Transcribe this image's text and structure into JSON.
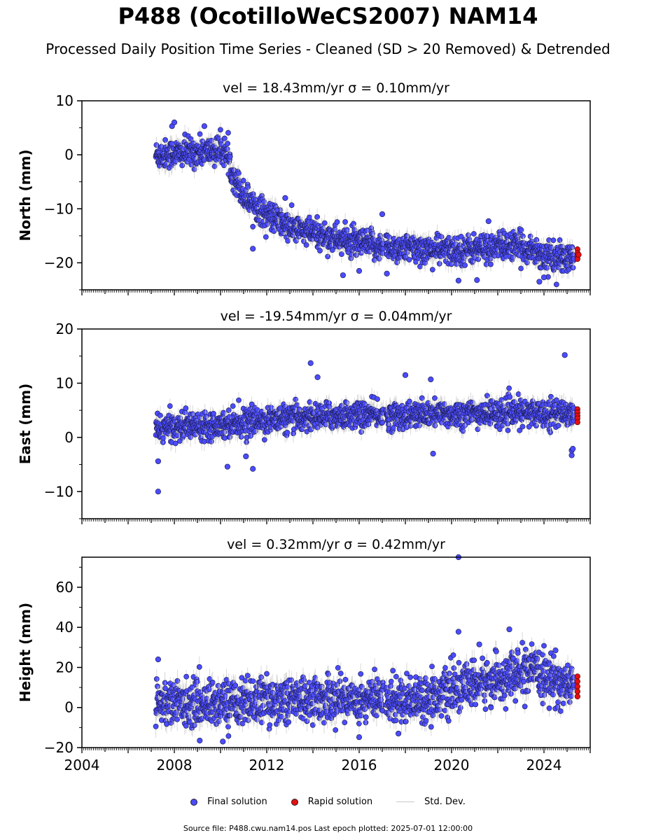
{
  "title": "P488 (OcotilloWeCS2007) NAM14",
  "subtitle": "Processed Daily Position Time Series - Cleaned (SD > 20 Removed) & Detrended",
  "footer": "Source file: P488.cwu.nam14.pos  Last epoch plotted: 2025-07-01 12:00:00",
  "legend": {
    "final": "Final solution",
    "rapid": "Rapid solution",
    "std": "Std. Dev."
  },
  "colors": {
    "final": "#4b4bff",
    "rapid": "#e41010",
    "std": "#c8c8c8",
    "edge": "#1a1a40"
  },
  "chart_data": [
    {
      "type": "scatter",
      "panel": "north",
      "title": "vel = 18.43mm/yr   σ = 0.10mm/yr",
      "ylabel": "North (mm)",
      "xlim": [
        2004,
        2026
      ],
      "ylim": [
        -25,
        10
      ],
      "yticks": [
        10,
        0,
        -10,
        -20
      ],
      "trend": {
        "x": [
          2007.2,
          2009.0,
          2010.2,
          2010.5,
          2011.0,
          2012.0,
          2013.0,
          2014.0,
          2015.0,
          2016.0,
          2017.1,
          2018.0,
          2020.0,
          2022.5,
          2023.5,
          2024.2,
          2025.0
        ],
        "y": [
          0.0,
          0.5,
          0.8,
          -3.0,
          -7.5,
          -11.0,
          -13.5,
          -14.5,
          -15.5,
          -16.5,
          -17.0,
          -17.3,
          -17.8,
          -16.8,
          -17.5,
          -19.0,
          -19.3
        ]
      },
      "scatter": 1.3,
      "outliers": [
        {
          "x": 2007.9,
          "y": 5.3
        },
        {
          "x": 2008.0,
          "y": 6.0
        },
        {
          "x": 2009.3,
          "y": 5.3
        },
        {
          "x": 2011.4,
          "y": -17.4
        },
        {
          "x": 2012.8,
          "y": -8.0
        },
        {
          "x": 2015.3,
          "y": -22.3
        },
        {
          "x": 2016.0,
          "y": -21.5
        },
        {
          "x": 2017.0,
          "y": -11.0
        },
        {
          "x": 2017.2,
          "y": -22.0
        },
        {
          "x": 2020.3,
          "y": -23.3
        },
        {
          "x": 2021.1,
          "y": -23.2
        },
        {
          "x": 2021.6,
          "y": -12.3
        },
        {
          "x": 2023.8,
          "y": -23.5
        },
        {
          "x": 2024.0,
          "y": -22.7
        }
      ],
      "rapid": [
        {
          "x": 2025.45,
          "y": -17.5
        },
        {
          "x": 2025.45,
          "y": -18.2
        },
        {
          "x": 2025.45,
          "y": -18.8
        },
        {
          "x": 2025.45,
          "y": -19.3
        },
        {
          "x": 2025.5,
          "y": -18.5
        }
      ]
    },
    {
      "type": "scatter",
      "panel": "east",
      "title": "vel = -19.54mm/yr   σ = 0.04mm/yr",
      "ylabel": "East (mm)",
      "xlim": [
        2004,
        2026
      ],
      "ylim": [
        -15,
        20
      ],
      "yticks": [
        20,
        10,
        0,
        -10
      ],
      "trend": {
        "x": [
          2007.2,
          2008.0,
          2010.0,
          2012.0,
          2014.0,
          2016.0,
          2017.1,
          2019.0,
          2021.0,
          2023.0,
          2025.0
        ],
        "y": [
          1.5,
          2.0,
          2.5,
          3.2,
          3.8,
          4.2,
          4.0,
          4.2,
          4.4,
          4.5,
          4.5
        ]
      },
      "scatter": 1.2,
      "outliers": [
        {
          "x": 2007.3,
          "y": -10.0
        },
        {
          "x": 2007.3,
          "y": -4.4
        },
        {
          "x": 2013.9,
          "y": 13.7
        },
        {
          "x": 2014.2,
          "y": 11.1
        },
        {
          "x": 2018.0,
          "y": 11.5
        },
        {
          "x": 2019.1,
          "y": 10.7
        },
        {
          "x": 2011.4,
          "y": -5.8
        },
        {
          "x": 2011.1,
          "y": -3.5
        },
        {
          "x": 2010.3,
          "y": -5.4
        },
        {
          "x": 2019.2,
          "y": -3.0
        },
        {
          "x": 2024.9,
          "y": 15.2
        },
        {
          "x": 2025.2,
          "y": -3.3
        },
        {
          "x": 2025.2,
          "y": -2.4
        },
        {
          "x": 2025.25,
          "y": -2.1
        }
      ],
      "rapid": [
        {
          "x": 2025.45,
          "y": 5.2
        },
        {
          "x": 2025.45,
          "y": 4.6
        },
        {
          "x": 2025.45,
          "y": 4.0
        },
        {
          "x": 2025.45,
          "y": 3.5
        },
        {
          "x": 2025.45,
          "y": 2.8
        }
      ]
    },
    {
      "type": "scatter",
      "panel": "height",
      "title": "vel = 0.32mm/yr   σ = 0.42mm/yr",
      "ylabel": "Height (mm)",
      "xlim": [
        2004,
        2026
      ],
      "ylim": [
        -20,
        75
      ],
      "yticks": [
        60,
        40,
        20,
        0,
        -20
      ],
      "xticks": [
        2004,
        2008,
        2012,
        2016,
        2020,
        2024
      ],
      "trend": {
        "x": [
          2007.2,
          2009.0,
          2011.0,
          2013.0,
          2015.0,
          2017.1,
          2019.0,
          2020.5,
          2022.0,
          2023.5,
          2024.5,
          2025.2
        ],
        "y": [
          3.0,
          2.0,
          3.0,
          4.0,
          4.5,
          4.0,
          5.0,
          10.0,
          14.0,
          18.0,
          13.0,
          11.0
        ]
      },
      "scatter": 5.5,
      "outliers": [
        {
          "x": 2007.3,
          "y": 24.0
        },
        {
          "x": 2020.3,
          "y": 75.0
        },
        {
          "x": 2020.3,
          "y": 37.8
        },
        {
          "x": 2022.5,
          "y": 39.0
        },
        {
          "x": 2021.2,
          "y": 31.5
        },
        {
          "x": 2017.7,
          "y": -13.0
        },
        {
          "x": 2010.1,
          "y": -17.0
        },
        {
          "x": 2009.1,
          "y": -16.5
        },
        {
          "x": 2016.0,
          "y": -14.8
        },
        {
          "x": 2024.5,
          "y": 28.5
        }
      ],
      "rapid": [
        {
          "x": 2025.45,
          "y": 15.5
        },
        {
          "x": 2025.45,
          "y": 13.0
        },
        {
          "x": 2025.45,
          "y": 10.5
        },
        {
          "x": 2025.45,
          "y": 8.0
        },
        {
          "x": 2025.45,
          "y": 5.5
        }
      ]
    }
  ]
}
